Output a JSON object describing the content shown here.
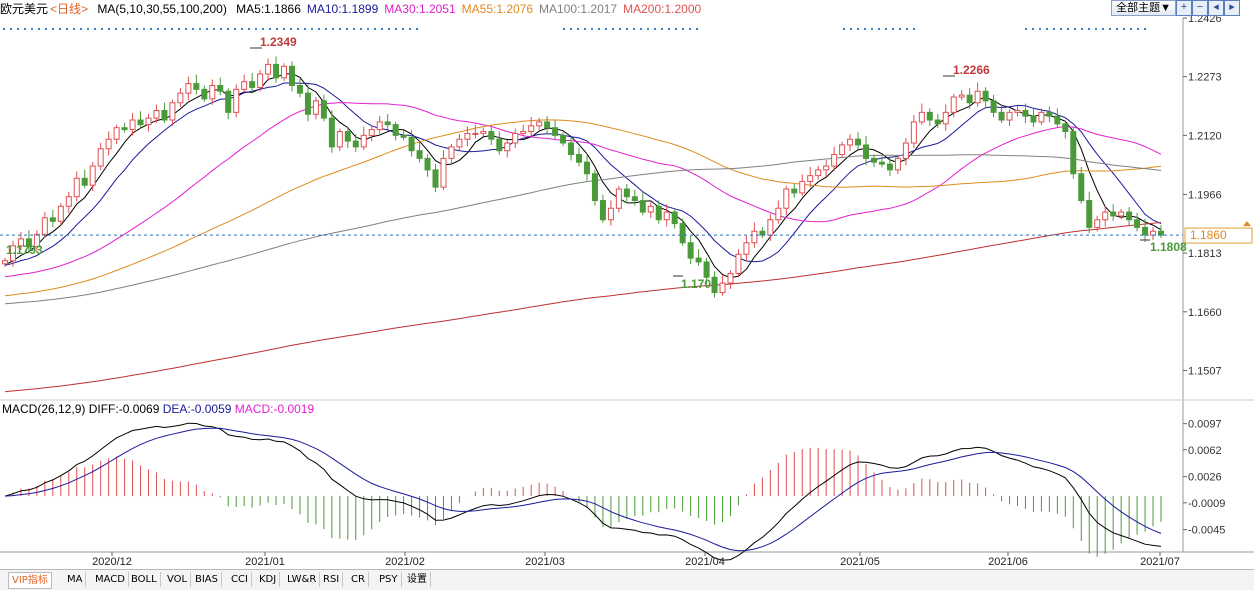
{
  "header": {
    "symbol": "欧元美元",
    "period": "<日线>",
    "ma_label": "MA(5,10,30,55,100,200)",
    "ma_values": [
      {
        "text": "MA5:1.1866",
        "color": "#000000"
      },
      {
        "text": "MA10:1.1899",
        "color": "#1a1a9a"
      },
      {
        "text": "MA30:1.2051",
        "color": "#e020d0"
      },
      {
        "text": "MA55:1.2076",
        "color": "#e08a1e"
      },
      {
        "text": "MA100:1.2017",
        "color": "#808080"
      },
      {
        "text": "MA200:1.2000",
        "color": "#e05050"
      }
    ],
    "theme_button": "全部主题▼",
    "tool_icons": [
      "plus-icon",
      "minus-icon",
      "left-icon",
      "right-icon"
    ]
  },
  "macd_header": {
    "label": "MACD(26,12,9)",
    "diff": "DIFF:-0.0069",
    "dea": "DEA:-0.0059",
    "macd": "MACD:-0.0019"
  },
  "price_axis": {
    "ticks": [
      "1.2426",
      "1.2273",
      "1.2120",
      "1.1966",
      "1.1813",
      "1.1660",
      "1.1507"
    ],
    "current": "1.1860"
  },
  "macd_axis": {
    "ticks": [
      "0.0097",
      "0.0062",
      "0.0026",
      "-0.0009",
      "-0.0045"
    ]
  },
  "annotations": {
    "high1": "1.2349",
    "high2": "1.2266",
    "low_start": "1.1793",
    "low_mid": "1.1704",
    "low_end": "1.1808"
  },
  "x_axis": {
    "ticks": [
      "2020/12",
      "2021/01",
      "2021/02",
      "2021/03",
      "2021/04",
      "2021/05",
      "2021/06",
      "2021/07"
    ]
  },
  "bottom_tabs": [
    "VIP指标",
    "MA",
    "MACD",
    "BOLL",
    "VOL",
    "BIAS",
    "CCI",
    "KDJ",
    "LW&R",
    "RSI",
    "CR",
    "PSY",
    "设置"
  ],
  "colors": {
    "up": "#e05050",
    "down": "#4a9a3a",
    "ma5": "#000000",
    "ma10": "#1a1a9a",
    "ma30": "#e020d0",
    "ma55": "#e08a1e",
    "ma100": "#808080",
    "ma200": "#c03030",
    "grid": "#d8d8d8"
  },
  "chart_data": {
    "type": "candlestick",
    "title": "欧元美元 日线",
    "ylim": [
      1.143,
      1.2426
    ],
    "closes": [
      1.1793,
      1.1832,
      1.185,
      1.183,
      1.1862,
      1.1905,
      1.1896,
      1.1935,
      1.196,
      1.2008,
      1.199,
      1.204,
      1.2085,
      1.211,
      1.214,
      1.2135,
      1.216,
      1.2148,
      1.2165,
      1.2185,
      1.216,
      1.2205,
      1.223,
      1.2255,
      1.224,
      1.2215,
      1.225,
      1.2235,
      1.218,
      1.224,
      1.226,
      1.2245,
      1.228,
      1.2305,
      1.227,
      1.23,
      1.225,
      1.223,
      1.2175,
      1.221,
      1.2165,
      1.209,
      1.213,
      1.2105,
      1.209,
      1.212,
      1.2135,
      1.2155,
      1.2148,
      1.212,
      1.2115,
      1.208,
      1.206,
      1.203,
      1.1985,
      1.206,
      1.209,
      1.211,
      1.2125,
      1.2125,
      1.213,
      1.211,
      1.208,
      1.21,
      1.2125,
      1.213,
      1.2145,
      1.2155,
      1.214,
      1.212,
      1.21,
      1.207,
      1.205,
      1.202,
      1.195,
      1.19,
      1.193,
      1.198,
      1.196,
      1.195,
      1.192,
      1.1935,
      1.19,
      1.192,
      1.189,
      1.184,
      1.18,
      1.179,
      1.175,
      1.171,
      1.1735,
      1.176,
      1.181,
      1.184,
      1.187,
      1.186,
      1.19,
      1.193,
      1.198,
      1.197,
      1.2,
      1.2015,
      1.203,
      1.204,
      1.207,
      1.2095,
      1.211,
      1.2095,
      1.206,
      1.205,
      1.2045,
      1.203,
      1.206,
      1.21,
      1.2155,
      1.218,
      1.216,
      1.215,
      1.218,
      1.222,
      1.2225,
      1.2205,
      1.2235,
      1.221,
      1.218,
      1.216,
      1.218,
      1.2185,
      1.217,
      1.2155,
      1.218,
      1.217,
      1.215,
      1.213,
      1.202,
      1.195,
      1.188,
      1.19,
      1.192,
      1.191,
      1.192,
      1.19,
      1.188,
      1.186,
      1.187,
      1.186
    ],
    "ma_series": [
      {
        "name": "MA5",
        "value": 1.1866
      },
      {
        "name": "MA10",
        "value": 1.1899
      },
      {
        "name": "MA30",
        "value": 1.2051
      },
      {
        "name": "MA55",
        "value": 1.2076
      },
      {
        "name": "MA100",
        "value": 1.2017
      },
      {
        "name": "MA200",
        "value": 1.2
      }
    ],
    "macd": {
      "ylim": [
        -0.0075,
        0.011
      ],
      "diff_last": -0.0069,
      "dea_last": -0.0059,
      "macd_last": -0.0019
    },
    "xlabel": "",
    "ylabel": ""
  }
}
